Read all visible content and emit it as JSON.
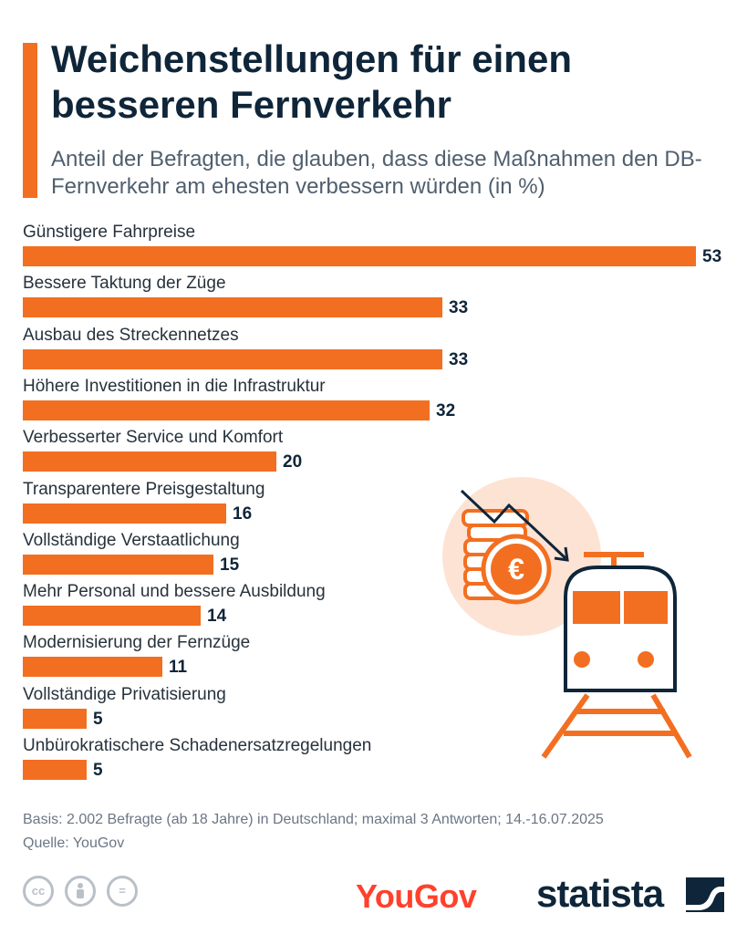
{
  "header": {
    "title": "Weichenstellungen für einen besseren Fernverkehr",
    "subtitle": "Anteil der Befragten, die glauben, dass diese Maßnahmen den DB-Fernverkehr am ehesten verbessern würden (in %)"
  },
  "chart_data": {
    "type": "bar",
    "orientation": "horizontal",
    "categories": [
      "Günstigere Fahrpreise",
      "Bessere Taktung der Züge",
      "Ausbau des Streckennetzes",
      "Höhere Investitionen in die Infrastruktur",
      "Verbesserter Service und Komfort",
      "Transparentere Preisgestaltung",
      "Vollständige Verstaatlichung",
      "Mehr Personal und bessere Ausbildung",
      "Modernisierung der Fernzüge",
      "Vollständige Privatisierung",
      "Unbürokratischere Schadenersatzregelungen"
    ],
    "values": [
      53,
      33,
      33,
      32,
      20,
      16,
      15,
      14,
      11,
      5,
      5
    ],
    "value_labels": true,
    "grid": false,
    "bar_color": "#f26f21"
  },
  "footer": {
    "basis": "Basis: 2.002 Befragte (ab 18 Jahre) in Deutschland; maximal 3 Antworten; 14.-16.07.2025",
    "source": "Quelle: YouGov",
    "license_icons": [
      "cc-icon",
      "by-icon",
      "nd-icon"
    ],
    "license_glyphs": [
      "cc",
      "="
    ]
  },
  "logos": {
    "yougov": "YouGov",
    "statista": "statista"
  },
  "illustration": {
    "icons": [
      "coin-stack-icon",
      "euro-coin-icon",
      "trend-arrow-icon",
      "train-icon"
    ],
    "euro_symbol": "€"
  },
  "colors": {
    "accent": "#f26f21",
    "title": "#0f2539",
    "subtitle": "#505f6e",
    "circle_bg": "#fde3d4",
    "yougov_red": "#ff412c"
  }
}
